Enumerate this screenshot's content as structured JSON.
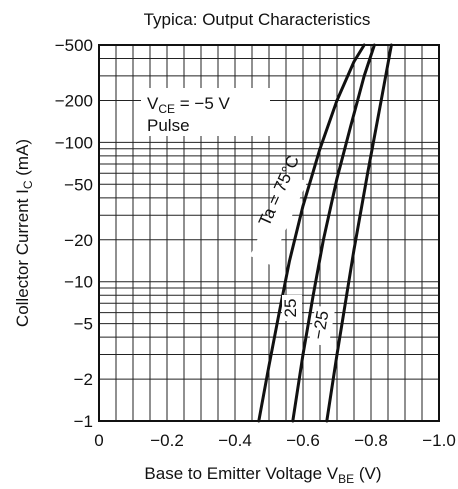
{
  "chart_data": {
    "type": "line",
    "title": "Typica: Output Characteristics",
    "xlabel": {
      "main": "Base to Emitter Voltage  V",
      "sub": "BE",
      "unit": "(V)"
    },
    "ylabel": {
      "main": "Collector Current  I",
      "sub": "C",
      "unit": "(mA)"
    },
    "x_scale": "linear",
    "y_scale": "log",
    "xlim": [
      0,
      -1.0
    ],
    "ylim": [
      -1,
      -500
    ],
    "x_ticks": [
      0,
      -0.2,
      -0.4,
      -0.6,
      -0.8,
      -1.0
    ],
    "x_tick_labels": [
      "0",
      "−0.2",
      "−0.4",
      "−0.6",
      "−0.8",
      "−1.0"
    ],
    "y_ticks": [
      -500,
      -200,
      -100,
      -50,
      -20,
      -10,
      -5,
      -2,
      -1
    ],
    "y_tick_labels": [
      "−500",
      "−200",
      "−100",
      "−50",
      "−20",
      "−10",
      "−5",
      "−2",
      "−1"
    ],
    "grid": true,
    "condition": {
      "line1_main": "V",
      "line1_sub": "CE",
      "line1_rest": " = −5 V",
      "line2": "Pulse"
    },
    "series": [
      {
        "name": "Ta = 75°C",
        "x": [
          -0.47,
          -0.5,
          -0.53,
          -0.56,
          -0.6,
          -0.65,
          -0.7,
          -0.75,
          -0.78
        ],
        "y": [
          -1,
          -2.5,
          -6,
          -14,
          -35,
          -90,
          -200,
          -380,
          -500
        ]
      },
      {
        "name": "25",
        "x": [
          -0.57,
          -0.6,
          -0.63,
          -0.66,
          -0.7,
          -0.74,
          -0.78,
          -0.81
        ],
        "y": [
          -1,
          -3,
          -8,
          -20,
          -55,
          -130,
          -300,
          -500
        ]
      },
      {
        "name": "−25",
        "x": [
          -0.67,
          -0.7,
          -0.72,
          -0.75,
          -0.79,
          -0.83,
          -0.86
        ],
        "y": [
          -1,
          -3,
          -6,
          -17,
          -60,
          -200,
          -500
        ]
      }
    ]
  }
}
